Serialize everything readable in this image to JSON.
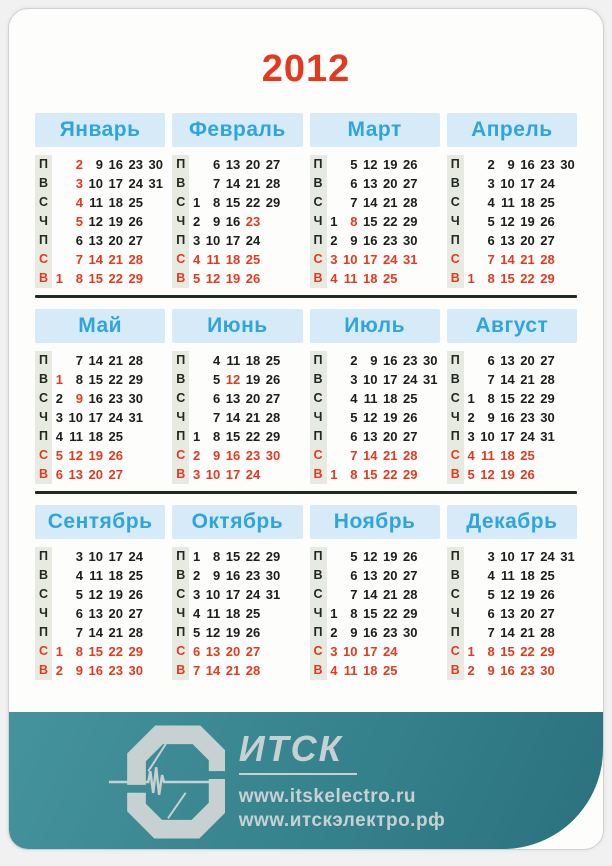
{
  "year": "2012",
  "weekday_labels": [
    "П",
    "В",
    "С",
    "Ч",
    "П",
    "С",
    "В"
  ],
  "months": [
    {
      "name": "Январь",
      "rows": [
        [
          "",
          "*2",
          "9",
          "16",
          "23",
          "30"
        ],
        [
          "",
          "*3",
          "10",
          "17",
          "24",
          "31"
        ],
        [
          "",
          "*4",
          "11",
          "18",
          "25",
          ""
        ],
        [
          "",
          "*5",
          "12",
          "19",
          "26",
          ""
        ],
        [
          "",
          "6",
          "13",
          "20",
          "27",
          ""
        ],
        [
          "",
          "7",
          "14",
          "21",
          "28",
          ""
        ],
        [
          "1",
          "8",
          "15",
          "22",
          "29",
          ""
        ]
      ]
    },
    {
      "name": "Февраль",
      "rows": [
        [
          "",
          "6",
          "13",
          "20",
          "27",
          ""
        ],
        [
          "",
          "7",
          "14",
          "21",
          "28",
          ""
        ],
        [
          "1",
          "8",
          "15",
          "22",
          "29",
          ""
        ],
        [
          "2",
          "9",
          "16",
          "*23",
          "",
          ""
        ],
        [
          "3",
          "10",
          "17",
          "24",
          "",
          ""
        ],
        [
          "4",
          "11",
          "18",
          "25",
          "",
          ""
        ],
        [
          "5",
          "12",
          "19",
          "26",
          "",
          ""
        ]
      ]
    },
    {
      "name": "Март",
      "rows": [
        [
          "",
          "5",
          "12",
          "19",
          "26",
          ""
        ],
        [
          "",
          "6",
          "13",
          "20",
          "27",
          ""
        ],
        [
          "",
          "7",
          "14",
          "21",
          "28",
          ""
        ],
        [
          "1",
          "*8",
          "15",
          "22",
          "29",
          ""
        ],
        [
          "2",
          "9",
          "16",
          "23",
          "30",
          ""
        ],
        [
          "3",
          "10",
          "17",
          "24",
          "31",
          ""
        ],
        [
          "4",
          "11",
          "18",
          "25",
          "",
          ""
        ]
      ]
    },
    {
      "name": "Апрель",
      "rows": [
        [
          "",
          "2",
          "9",
          "16",
          "23",
          "30"
        ],
        [
          "",
          "3",
          "10",
          "17",
          "24",
          ""
        ],
        [
          "",
          "4",
          "11",
          "18",
          "25",
          ""
        ],
        [
          "",
          "5",
          "12",
          "19",
          "26",
          ""
        ],
        [
          "",
          "6",
          "13",
          "20",
          "27",
          ""
        ],
        [
          "",
          "7",
          "14",
          "21",
          "28",
          ""
        ],
        [
          "1",
          "8",
          "15",
          "22",
          "29",
          ""
        ]
      ]
    },
    {
      "name": "Май",
      "rows": [
        [
          "",
          "7",
          "14",
          "21",
          "28",
          ""
        ],
        [
          "*1",
          "8",
          "15",
          "22",
          "29",
          ""
        ],
        [
          "2",
          "*9",
          "16",
          "23",
          "30",
          ""
        ],
        [
          "3",
          "10",
          "17",
          "24",
          "31",
          ""
        ],
        [
          "4",
          "11",
          "18",
          "25",
          "",
          ""
        ],
        [
          "5",
          "12",
          "19",
          "26",
          "",
          ""
        ],
        [
          "6",
          "13",
          "20",
          "27",
          "",
          ""
        ]
      ]
    },
    {
      "name": "Июнь",
      "rows": [
        [
          "",
          "4",
          "11",
          "18",
          "25",
          ""
        ],
        [
          "",
          "5",
          "*12",
          "19",
          "26",
          ""
        ],
        [
          "",
          "6",
          "13",
          "20",
          "27",
          ""
        ],
        [
          "",
          "7",
          "14",
          "21",
          "28",
          ""
        ],
        [
          "1",
          "8",
          "15",
          "22",
          "29",
          ""
        ],
        [
          "2",
          "9",
          "16",
          "23",
          "30",
          ""
        ],
        [
          "3",
          "10",
          "17",
          "24",
          "",
          ""
        ]
      ]
    },
    {
      "name": "Июль",
      "rows": [
        [
          "",
          "2",
          "9",
          "16",
          "23",
          "30"
        ],
        [
          "",
          "3",
          "10",
          "17",
          "24",
          "31"
        ],
        [
          "",
          "4",
          "11",
          "18",
          "25",
          ""
        ],
        [
          "",
          "5",
          "12",
          "19",
          "26",
          ""
        ],
        [
          "",
          "6",
          "13",
          "20",
          "27",
          ""
        ],
        [
          "",
          "7",
          "14",
          "21",
          "28",
          ""
        ],
        [
          "1",
          "8",
          "15",
          "22",
          "29",
          ""
        ]
      ]
    },
    {
      "name": "Август",
      "rows": [
        [
          "",
          "6",
          "13",
          "20",
          "27",
          ""
        ],
        [
          "",
          "7",
          "14",
          "21",
          "28",
          ""
        ],
        [
          "1",
          "8",
          "15",
          "22",
          "29",
          ""
        ],
        [
          "2",
          "9",
          "16",
          "23",
          "30",
          ""
        ],
        [
          "3",
          "10",
          "17",
          "24",
          "31",
          ""
        ],
        [
          "4",
          "11",
          "18",
          "25",
          "",
          ""
        ],
        [
          "5",
          "12",
          "19",
          "26",
          "",
          ""
        ]
      ]
    },
    {
      "name": "Сентябрь",
      "rows": [
        [
          "",
          "3",
          "10",
          "17",
          "24",
          ""
        ],
        [
          "",
          "4",
          "11",
          "18",
          "25",
          ""
        ],
        [
          "",
          "5",
          "12",
          "19",
          "26",
          ""
        ],
        [
          "",
          "6",
          "13",
          "20",
          "27",
          ""
        ],
        [
          "",
          "7",
          "14",
          "21",
          "28",
          ""
        ],
        [
          "1",
          "8",
          "15",
          "22",
          "29",
          ""
        ],
        [
          "2",
          "9",
          "16",
          "23",
          "30",
          ""
        ]
      ]
    },
    {
      "name": "Октябрь",
      "rows": [
        [
          "1",
          "8",
          "15",
          "22",
          "29",
          ""
        ],
        [
          "2",
          "9",
          "16",
          "23",
          "30",
          ""
        ],
        [
          "3",
          "10",
          "17",
          "24",
          "31",
          ""
        ],
        [
          "4",
          "11",
          "18",
          "25",
          "",
          ""
        ],
        [
          "5",
          "12",
          "19",
          "26",
          "",
          ""
        ],
        [
          "6",
          "13",
          "20",
          "27",
          "",
          ""
        ],
        [
          "7",
          "14",
          "21",
          "28",
          "",
          ""
        ]
      ]
    },
    {
      "name": "Ноябрь",
      "rows": [
        [
          "",
          "5",
          "12",
          "19",
          "26",
          ""
        ],
        [
          "",
          "6",
          "13",
          "20",
          "27",
          ""
        ],
        [
          "",
          "7",
          "14",
          "21",
          "28",
          ""
        ],
        [
          "1",
          "8",
          "15",
          "22",
          "29",
          ""
        ],
        [
          "2",
          "9",
          "16",
          "23",
          "30",
          ""
        ],
        [
          "3",
          "10",
          "17",
          "24",
          "",
          ""
        ],
        [
          "4",
          "11",
          "18",
          "25",
          "",
          ""
        ]
      ]
    },
    {
      "name": "Декабрь",
      "rows": [
        [
          "",
          "3",
          "10",
          "17",
          "24",
          "31"
        ],
        [
          "",
          "4",
          "11",
          "18",
          "25",
          ""
        ],
        [
          "",
          "5",
          "12",
          "19",
          "26",
          ""
        ],
        [
          "",
          "6",
          "13",
          "20",
          "27",
          ""
        ],
        [
          "",
          "7",
          "14",
          "21",
          "28",
          ""
        ],
        [
          "1",
          "8",
          "15",
          "22",
          "29",
          ""
        ],
        [
          "2",
          "9",
          "16",
          "23",
          "30",
          ""
        ]
      ]
    }
  ],
  "footer": {
    "company": "ИТСК",
    "url_latin": "www.itskelectro.ru",
    "url_cyrillic": "www.итскэлектро.рф"
  },
  "colors": {
    "accent_red": "#e23a1e",
    "month_header_blue": "#2fa5dc",
    "month_header_bg": "#d6eaf7",
    "weekday_strip": "#e7eae1",
    "footer_teal": "#35828d",
    "logo_gray": "#c7d1d1"
  }
}
